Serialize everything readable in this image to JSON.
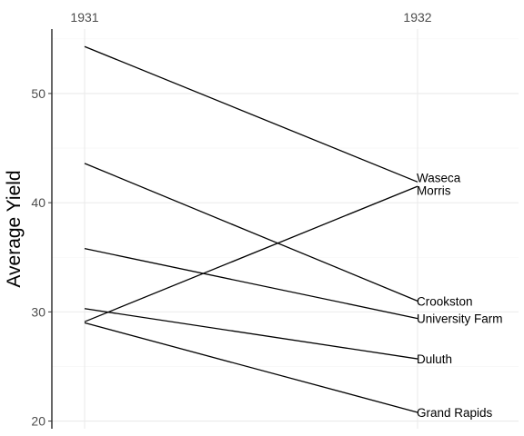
{
  "chart_data": {
    "type": "line",
    "title": "",
    "xlabel": "",
    "ylabel": "Average Yield",
    "categories": [
      "1931",
      "1932"
    ],
    "ylim": [
      19.3,
      55.9
    ],
    "yticks": [
      20,
      30,
      40,
      50
    ],
    "grid": true,
    "legend": "none",
    "x_labels_position": "top",
    "series": [
      {
        "name": "Waseca",
        "values": [
          54.3,
          41.9
        ]
      },
      {
        "name": "Morris",
        "values": [
          29.1,
          41.5
        ]
      },
      {
        "name": "Crookston",
        "values": [
          43.6,
          31.0
        ]
      },
      {
        "name": "University Farm",
        "values": [
          35.8,
          29.4
        ]
      },
      {
        "name": "Duluth",
        "values": [
          30.3,
          25.7
        ]
      },
      {
        "name": "Grand Rapids",
        "values": [
          29.0,
          20.8
        ]
      }
    ]
  }
}
